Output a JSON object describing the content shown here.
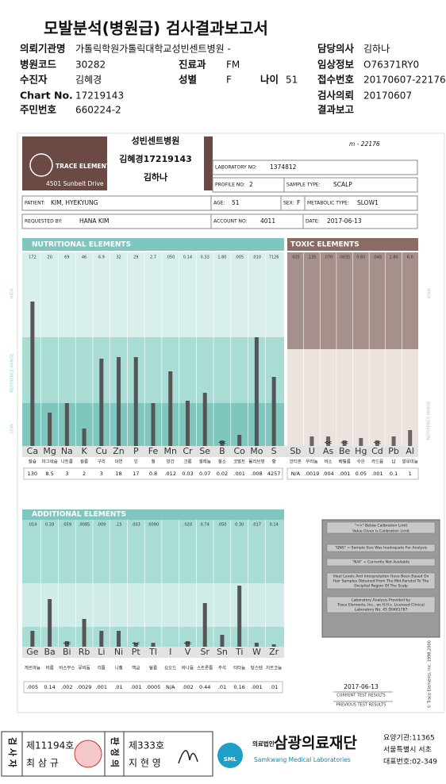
{
  "header": {
    "title": "모발분석(병원급) 검사결과보고서"
  },
  "info": [
    {
      "label": "의뢰기관명",
      "value": "가톨릭학원가톨릭대학교성빈센트병원 -"
    },
    {
      "label": "담당의사",
      "value": "김하나"
    },
    {
      "label": "병원코드",
      "value": "30282"
    },
    {
      "label": "진료과",
      "value": "FM"
    },
    {
      "label": "임상정보",
      "value": "O76371RY0"
    },
    {
      "label": "수진자",
      "value": "김혜경"
    },
    {
      "label": "성별",
      "value": "F"
    },
    {
      "label": "나이",
      "value": "51"
    },
    {
      "label": "접수번호",
      "value": "20170607-22176"
    },
    {
      "label": "Chart No.",
      "value": "17219143"
    },
    {
      "label": "검사의뢰",
      "value": "20170607"
    },
    {
      "label": "주민번호",
      "value": "660224-2"
    },
    {
      "label": "결과보고"
    }
  ],
  "report": {
    "company": "TRACE ELEMENTS",
    "address": "4501 Sunbelt Drive",
    "stamp": [
      "성빈센트병원",
      "김혜경17219143",
      "김하나"
    ],
    "handwriting": "m - 22176",
    "fields": [
      {
        "label": "LABORATORY NO:",
        "value": "1374812"
      },
      {
        "label": "PROFILE NO:",
        "value": "2"
      },
      {
        "label": "SAMPLE TYPE:",
        "value": "SCALP"
      },
      {
        "label": "PATIENT:",
        "value": "KIM, HYEKYUNG"
      },
      {
        "label": "AGE:",
        "value": "51"
      },
      {
        "label": "SEX:",
        "value": "F"
      },
      {
        "label": "METABOLIC TYPE:",
        "value": "SLOW1"
      },
      {
        "label": "REQUESTED BY:",
        "value": "HANA KIM"
      },
      {
        "label": "ACCOUNT NO:",
        "value": "4011"
      },
      {
        "label": "DATE:",
        "value": "2017-06-13"
      }
    ],
    "side_labels": {
      "high": "HIGH",
      "reference": "REFERENCE RANGE",
      "low": "LOW"
    }
  },
  "nutritional": {
    "title": "NUTRITIONAL ELEMENTS",
    "elements": [
      {
        "symbol": "Ca",
        "name": "칼슘",
        "high": "172",
        "result": "130"
      },
      {
        "symbol": "Mg",
        "name": "마그네슘",
        "high": "20",
        "result": "8.5"
      },
      {
        "symbol": "Na",
        "name": "나트륨",
        "high": "69",
        "result": "3"
      },
      {
        "symbol": "K",
        "name": "칼륨",
        "high": "46",
        "result": "2"
      },
      {
        "symbol": "Cu",
        "name": "구리",
        "high": "6.9",
        "result": "3"
      },
      {
        "symbol": "Zn",
        "name": "아연",
        "high": "32",
        "result": "18"
      },
      {
        "symbol": "P",
        "name": "인",
        "high": "29",
        "result": "17"
      },
      {
        "symbol": "Fe",
        "name": "철",
        "high": "2.7",
        "result": "0.8"
      },
      {
        "symbol": "Mn",
        "name": "망간",
        "high": ".050",
        "result": ".012"
      },
      {
        "symbol": "Cr",
        "name": "크롬",
        "high": "0.14",
        "result": "0.03"
      },
      {
        "symbol": "Se",
        "name": "셀레늄",
        "high": "0.33",
        "result": "0.07"
      },
      {
        "symbol": "B",
        "name": "붕소",
        "high": "1.80",
        "result": "0.02",
        "below": "<<"
      },
      {
        "symbol": "Co",
        "name": "코발트",
        "high": ".005",
        "result": ".001"
      },
      {
        "symbol": "Mo",
        "name": "몰리브덴",
        "high": ".010",
        "result": ".008"
      },
      {
        "symbol": "S",
        "name": "황",
        "high": "7126",
        "result": "4257"
      }
    ]
  },
  "toxic": {
    "title": "TOXIC ELEMENTS",
    "elements": [
      {
        "symbol": "Sb",
        "name": "안티몬",
        "high": ".025",
        "result": "N/A"
      },
      {
        "symbol": "U",
        "name": "우라늄",
        "high": ".135",
        "result": ".0019"
      },
      {
        "symbol": "As",
        "name": "비소",
        "high": ".070",
        "result": ".004",
        "below": "<<"
      },
      {
        "symbol": "Be",
        "name": "베릴륨",
        "high": ".0035",
        "result": ".001",
        "below": "<<"
      },
      {
        "symbol": "Hg",
        "name": "수은",
        "high": "0.60",
        "result": "0.05"
      },
      {
        "symbol": "Cd",
        "name": "카드뮴",
        "high": ".048",
        "result": ".001",
        "below": "<<"
      },
      {
        "symbol": "Pb",
        "name": "납",
        "high": "1.80",
        "result": "0.1"
      },
      {
        "symbol": "Al",
        "name": "알루미늄",
        "high": "6.0",
        "result": "1"
      }
    ]
  },
  "additional": {
    "title": "ADDITIONAL ELEMENTS",
    "elements": [
      {
        "symbol": "Ge",
        "name": "게르마늄",
        "high": ".014",
        "result": ".005"
      },
      {
        "symbol": "Ba",
        "name": "바륨",
        "high": "0.39",
        "result": "0.14"
      },
      {
        "symbol": "Bi",
        "name": "비스무스",
        "high": ".059",
        "result": ".002",
        "below": "<<"
      },
      {
        "symbol": "Rb",
        "name": "루비듐",
        "high": ".0085",
        "result": ".0029"
      },
      {
        "symbol": "Li",
        "name": "리튬",
        "high": ".009",
        "result": ".001"
      },
      {
        "symbol": "Ni",
        "name": "니켈",
        "high": ".15",
        "result": ".01"
      },
      {
        "symbol": "Pt",
        "name": "백금",
        "high": ".003",
        "result": ".001",
        "below": "<<"
      },
      {
        "symbol": "Tl",
        "name": "탈륨",
        "high": ".0090",
        "result": ".0005"
      },
      {
        "symbol": "I",
        "name": "요오드",
        "result": "N/A"
      },
      {
        "symbol": "V",
        "name": "바나듐",
        "high": ".020",
        "result": ".002",
        "below": "<<"
      },
      {
        "symbol": "Sr",
        "name": "스트론튬",
        "high": "0.74",
        "result": "0.44"
      },
      {
        "symbol": "Sn",
        "name": "주석",
        "high": ".050",
        "result": ".01"
      },
      {
        "symbol": "Ti",
        "name": "티타늄",
        "high": "0.30",
        "result": "0.16"
      },
      {
        "symbol": "W",
        "name": "텅스텐",
        "high": ".017",
        "result": ".001"
      },
      {
        "symbol": "Zr",
        "name": "지르코늄",
        "high": "0.14",
        "result": ".01"
      }
    ]
  },
  "legend": [
    "\"<<\" Below Calibration Limit",
    "Value Given is Calibration Limit",
    "\"QNS\" = Sample Size Was Inadequate For Analysis",
    "\"N/A\" = Currently Not Available",
    "Ideal Levels And Interpretation Have Been Based On",
    "Hair Samples Obtained From The Mid-Parietal To The",
    "Occipital Region Of The Scalp",
    "Laboratory Analysis Provided by",
    "Trace Elements, Inc., an H.H.s. Licensed Clinical",
    "Laboratory No. 45 D0481787"
  ],
  "results_footer": {
    "date": "2017-06-13",
    "current": "CURRENT TEST RESULTS",
    "previous": "PREVIOUS TEST RESULTS",
    "copyright": "© Trace Elements, Inc. 1998,2000"
  },
  "footer": {
    "examiner_label": "검사자",
    "examiner_no": "제11194호",
    "examiner": "최 삼 규",
    "judge_label": "판정의",
    "judge_no": "제333호",
    "judge": "지 현 영",
    "org_type": "의료법인",
    "org": "삼광의료재단",
    "org_en": "Samkwang Medical Laboratories",
    "logo": "SML",
    "lines": [
      "요양기관:11365",
      "서울특별시 서초",
      "대표번호:02-349"
    ]
  }
}
